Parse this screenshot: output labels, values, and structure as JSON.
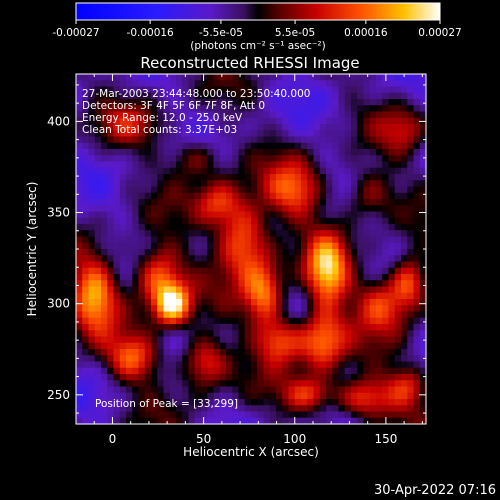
{
  "chart_data": {
    "type": "heatmap",
    "title": "Reconstructed RHESSI Image",
    "xlabel": "Heliocentric X (arcsec)",
    "ylabel": "Heliocentric Y (arcsec)",
    "xlim": [
      -20,
      172
    ],
    "ylim": [
      234,
      426
    ],
    "x_ticks": [
      0,
      50,
      100,
      150
    ],
    "y_ticks": [
      250,
      300,
      350,
      400
    ],
    "colorbar": {
      "label": "(photons cm⁻² s⁻¹ asec⁻²)",
      "range": [
        -0.00027,
        0.00027
      ],
      "ticks": [
        {
          "value": -0.00027,
          "label": "-0.00027"
        },
        {
          "value": -0.00016,
          "label": "-0.00016"
        },
        {
          "value": -5.5e-05,
          "label": "-5.5e-05"
        },
        {
          "value": 5.5e-05,
          "label": "5.5e-05"
        },
        {
          "value": 0.00016,
          "label": "0.00016"
        },
        {
          "value": 0.00027,
          "label": "0.00027"
        }
      ]
    },
    "annotations": [
      "27-Mar-2003 23:44:48.000 to 23:50:40.000",
      "Detectors: 3F 4F 5F 6F 7F 8F, Att 0",
      "Energy Range: 12.0 - 25.0 keV",
      "Clean     Total counts: 3.37E+03"
    ],
    "peak_label": "Position of Peak = [33,299]",
    "peak": [
      33,
      299
    ],
    "grid": false,
    "image_sources": [
      {
        "x": -10,
        "y": 305,
        "sx": 9,
        "sy": 14,
        "amp": 0.00024
      },
      {
        "x": 12,
        "y": 270,
        "sx": 10,
        "sy": 9,
        "amp": 0.00018
      },
      {
        "x": 25,
        "y": 315,
        "sx": 10,
        "sy": 12,
        "amp": 0.00022
      },
      {
        "x": 33,
        "y": 299,
        "sx": 7,
        "sy": 8,
        "amp": 0.00027
      },
      {
        "x": 50,
        "y": 268,
        "sx": 9,
        "sy": 10,
        "amp": 0.0002
      },
      {
        "x": 58,
        "y": 355,
        "sx": 9,
        "sy": 9,
        "amp": 0.00016
      },
      {
        "x": 72,
        "y": 335,
        "sx": 10,
        "sy": 14,
        "amp": 0.00024
      },
      {
        "x": 83,
        "y": 305,
        "sx": 8,
        "sy": 12,
        "amp": 0.00022
      },
      {
        "x": 92,
        "y": 280,
        "sx": 9,
        "sy": 9,
        "amp": 0.00019
      },
      {
        "x": 100,
        "y": 362,
        "sx": 11,
        "sy": 11,
        "amp": 0.00018
      },
      {
        "x": 108,
        "y": 250,
        "sx": 10,
        "sy": 7,
        "amp": 0.00017
      },
      {
        "x": 118,
        "y": 318,
        "sx": 8,
        "sy": 14,
        "amp": 0.00025
      },
      {
        "x": 115,
        "y": 280,
        "sx": 9,
        "sy": 12,
        "amp": 0.00022
      },
      {
        "x": 138,
        "y": 248,
        "sx": 11,
        "sy": 8,
        "amp": 0.0002
      },
      {
        "x": 148,
        "y": 300,
        "sx": 10,
        "sy": 11,
        "amp": 0.00018
      },
      {
        "x": 163,
        "y": 312,
        "sx": 7,
        "sy": 10,
        "amp": 0.00021
      },
      {
        "x": 162,
        "y": 255,
        "sx": 8,
        "sy": 8,
        "amp": 0.00014
      },
      {
        "x": 45,
        "y": 380,
        "sx": 10,
        "sy": 8,
        "amp": 0.00012
      },
      {
        "x": 10,
        "y": 398,
        "sx": 12,
        "sy": 8,
        "amp": 9e-05
      },
      {
        "x": 140,
        "y": 360,
        "sx": 10,
        "sy": 10,
        "amp": 0.00013
      },
      {
        "x": 160,
        "y": 395,
        "sx": 9,
        "sy": 9,
        "amp": 0.0001
      }
    ]
  },
  "timestamp": "30-Apr-2022 07:16"
}
